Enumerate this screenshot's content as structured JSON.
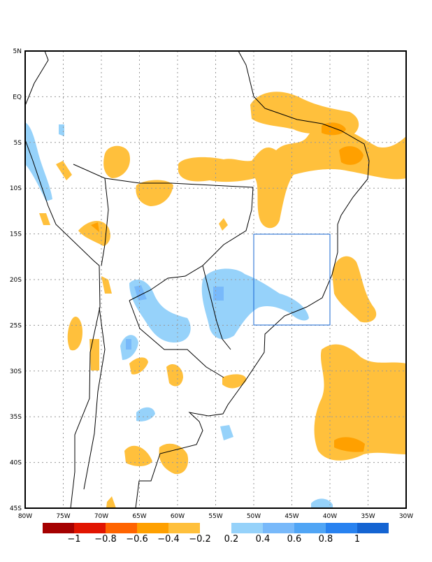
{
  "map": {
    "lon_labels": [
      "80W",
      "75W",
      "70W",
      "65W",
      "60W",
      "55W",
      "50W",
      "45W",
      "40W",
      "35W",
      "30W"
    ],
    "lat_labels": [
      "5N",
      "EQ",
      "5S",
      "10S",
      "15S",
      "20S",
      "25S",
      "30S",
      "35S",
      "40S",
      "45S"
    ],
    "extent": {
      "lon": [
        -80,
        -30
      ],
      "lat": [
        -45,
        5
      ]
    },
    "highlight_box": {
      "lon": [
        -50,
        -40
      ],
      "lat": [
        -25,
        -15
      ],
      "color": "#1464d2"
    }
  },
  "colorbar": {
    "negative_colors": [
      "#a50000",
      "#e11400",
      "#ff6400",
      "#ffa000",
      "#ffc03c"
    ],
    "positive_colors": [
      "#96d2fa",
      "#78b9fa",
      "#50a5f5",
      "#2882f0",
      "#1464d2"
    ],
    "labels": [
      "−1",
      "−0.8",
      "−0.6",
      "−0.4",
      "−0.2",
      "0.2",
      "0.4",
      "0.6",
      "0.8",
      "1"
    ]
  }
}
